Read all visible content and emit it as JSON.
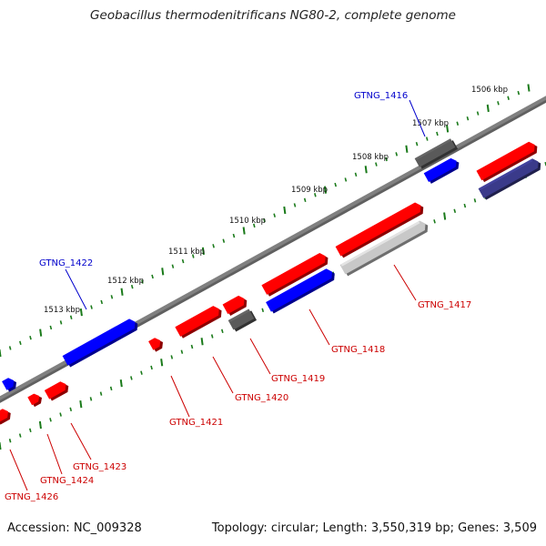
{
  "title": "Geobacillus thermodenitrificans NG80-2, complete genome",
  "footer": {
    "accession": "Accession: NC_009328",
    "summary": "Topology: circular; Length: 3,550,319 bp; Genes: 3,509"
  },
  "colors": {
    "forward_gene": "#ff0000",
    "reverse_gene": "#0000ff",
    "other_gene_dark": "#5a5a5a",
    "other_gene_light": "#c8c8c8",
    "reverse_gene_dark": "#3a3a8a",
    "backbone": "#808080",
    "tick": "#1a7a1a",
    "forward_label": "#cc0000",
    "reverse_label": "#0000cc"
  },
  "ruler_labels": [
    "1506 kbp",
    "1507 kbp",
    "1508 kbp",
    "1509 kbp",
    "1510 kbp",
    "1511 kbp",
    "1512 kbp",
    "1513 kbp"
  ],
  "gene_labels": [
    {
      "id": "GTNG_1416",
      "strand": "reverse"
    },
    {
      "id": "GTNG_1417",
      "strand": "forward"
    },
    {
      "id": "GTNG_1418",
      "strand": "forward"
    },
    {
      "id": "GTNG_1419",
      "strand": "forward"
    },
    {
      "id": "GTNG_1420",
      "strand": "forward"
    },
    {
      "id": "GTNG_1421",
      "strand": "forward"
    },
    {
      "id": "GTNG_1422",
      "strand": "reverse"
    },
    {
      "id": "GTNG_1423",
      "strand": "forward"
    },
    {
      "id": "GTNG_1424",
      "strand": "forward"
    },
    {
      "id": "GTNG_1426",
      "strand": "forward"
    }
  ]
}
